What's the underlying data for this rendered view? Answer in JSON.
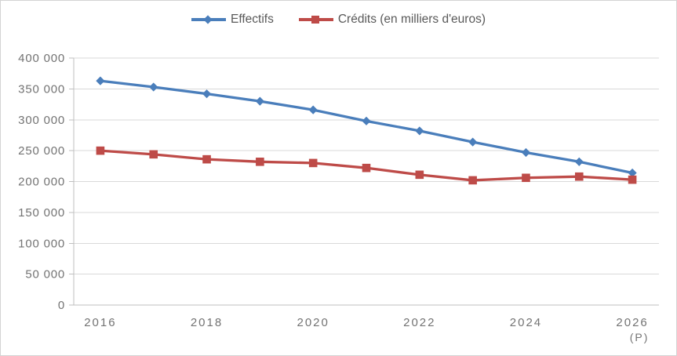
{
  "chart_data": {
    "type": "line",
    "title": "",
    "xlabel": "",
    "ylabel": "",
    "categories": [
      "2016",
      "2017",
      "2018",
      "2019",
      "2020",
      "2021",
      "2022",
      "2023",
      "2024",
      "2025",
      "2026"
    ],
    "series": [
      {
        "name": "Effectifs",
        "color": "#4A7EBB",
        "marker": "diamond",
        "values": [
          363000,
          353000,
          342000,
          330000,
          316000,
          298000,
          282000,
          264000,
          247000,
          232000,
          214000
        ]
      },
      {
        "name": "Crédits (en milliers d'euros)",
        "color": "#BE4B48",
        "marker": "square",
        "values": [
          250000,
          244000,
          236000,
          232000,
          230000,
          222000,
          211000,
          202000,
          206000,
          208000,
          203000
        ]
      }
    ],
    "ylim": [
      0,
      400000
    ],
    "y_tick_step": 50000,
    "y_tick_labels": [
      "0",
      "50 000",
      "100 000",
      "150 000",
      "200 000",
      "250 000",
      "300 000",
      "350 000",
      "400 000"
    ],
    "x_ticks": [
      {
        "i": 0,
        "label": "2016"
      },
      {
        "i": 2,
        "label": "2018"
      },
      {
        "i": 4,
        "label": "2020"
      },
      {
        "i": 6,
        "label": "2022"
      },
      {
        "i": 8,
        "label": "2024"
      },
      {
        "i": 10,
        "label": "2026",
        "sub": "(P)"
      }
    ],
    "grid": true,
    "legend_position": "top",
    "colors": {
      "grid": "#d9d9d9",
      "axis": "#bfbfbf",
      "axis_text": "#737373",
      "legend_text": "#595959"
    }
  }
}
